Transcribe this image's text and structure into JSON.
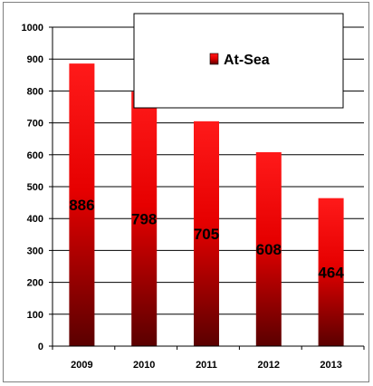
{
  "chart_data": {
    "type": "bar",
    "categories": [
      "2009",
      "2010",
      "2011",
      "2012",
      "2013"
    ],
    "series": [
      {
        "name": "At-Sea",
        "values": [
          886,
          798,
          705,
          608,
          464
        ]
      }
    ],
    "data_labels": [
      "886",
      "798",
      "705",
      "608",
      "464"
    ],
    "y_ticks": [
      "0",
      "100",
      "200",
      "300",
      "400",
      "500",
      "600",
      "700",
      "800",
      "900",
      "1000"
    ],
    "ylim": [
      0,
      1000
    ],
    "title": "",
    "xlabel": "",
    "ylabel": "",
    "grid": true,
    "legend": {
      "position": "top-center",
      "label": "At-Sea"
    },
    "colors": {
      "bar_top": "#ff1a1a",
      "bar_bottom": "#5a0000",
      "grid": "#000000",
      "border": "#7f7f7f"
    }
  }
}
